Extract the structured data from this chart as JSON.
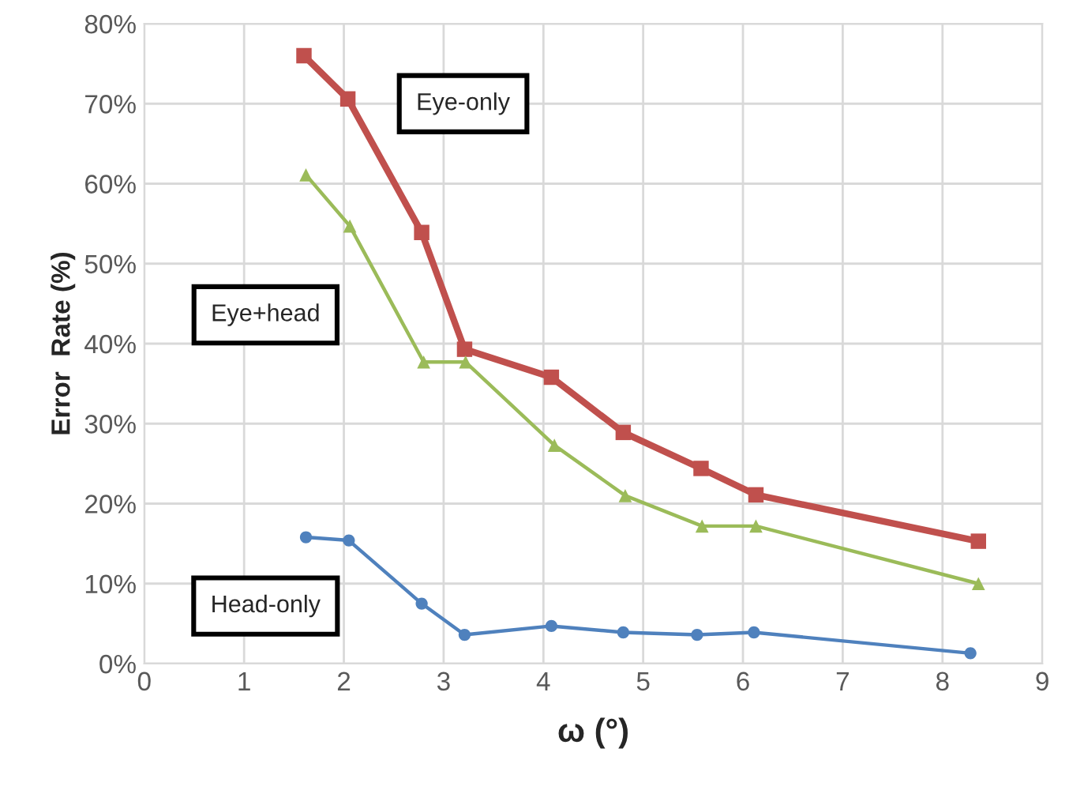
{
  "chart_data": {
    "type": "line",
    "xlabel": "ω (°)",
    "ylabel": "Error  Rate (%)",
    "series": [
      {
        "name": "Eye-only",
        "color": "#c0504d",
        "marker": "square",
        "x": [
          1.6,
          2.04,
          2.78,
          3.21,
          4.08,
          4.8,
          5.58,
          6.13,
          8.36
        ],
        "values": [
          76.0,
          70.6,
          53.9,
          39.3,
          35.8,
          28.9,
          24.4,
          21.1,
          15.3
        ]
      },
      {
        "name": "Eye+head",
        "color": "#9bbb59",
        "marker": "triangle",
        "x": [
          1.62,
          2.06,
          2.8,
          3.22,
          4.11,
          4.82,
          5.59,
          6.13,
          8.36
        ],
        "values": [
          61.1,
          54.7,
          37.7,
          37.7,
          27.3,
          21.0,
          17.2,
          17.2,
          10.0
        ]
      },
      {
        "name": "Head-only",
        "color": "#4f81bd",
        "marker": "circle",
        "x": [
          1.62,
          2.05,
          2.78,
          3.21,
          4.08,
          4.8,
          5.54,
          6.11,
          8.28
        ],
        "values": [
          15.8,
          15.4,
          7.5,
          3.6,
          4.7,
          3.9,
          3.6,
          3.9,
          1.3
        ]
      }
    ],
    "xlim": [
      0,
      9
    ],
    "xticks": [
      0,
      1,
      2,
      3,
      4,
      5,
      6,
      7,
      8,
      9
    ],
    "ylim": [
      0,
      80
    ],
    "yticks": [
      {
        "value": 0,
        "label": "0%"
      },
      {
        "value": 10,
        "label": "10%"
      },
      {
        "value": 20,
        "label": "20%"
      },
      {
        "value": 30,
        "label": "30%"
      },
      {
        "value": 40,
        "label": "40%"
      },
      {
        "value": 50,
        "label": "50%"
      },
      {
        "value": 60,
        "label": "60%"
      },
      {
        "value": 70,
        "label": "70%"
      },
      {
        "value": 80,
        "label": "80%"
      }
    ],
    "grid": true,
    "legend": false,
    "line_style": "solid"
  }
}
